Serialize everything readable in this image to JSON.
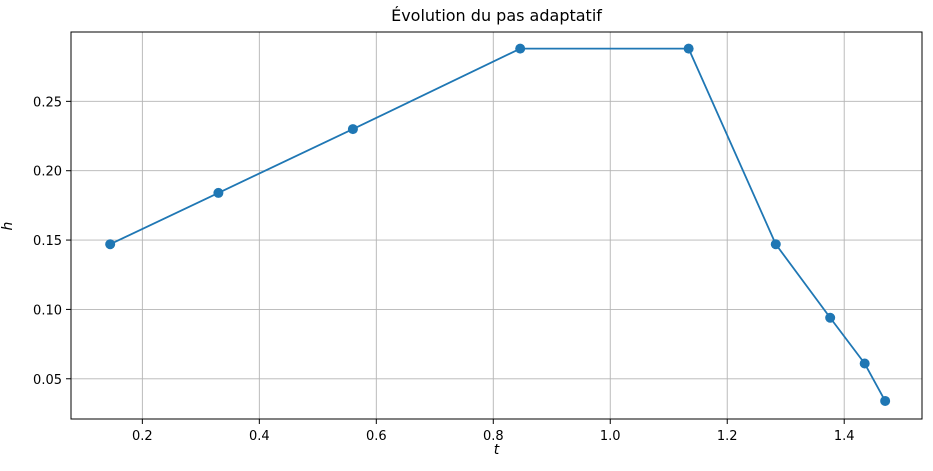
{
  "chart_data": {
    "type": "line",
    "title": "Évolution du pas adaptatif",
    "xlabel": "t",
    "ylabel": "h",
    "x": [
      0.145,
      0.33,
      0.56,
      0.846,
      1.134,
      1.283,
      1.376,
      1.435,
      1.47
    ],
    "y": [
      0.147,
      0.184,
      0.23,
      0.288,
      0.288,
      0.147,
      0.094,
      0.061,
      0.034
    ],
    "xlim": [
      0.078,
      1.533
    ],
    "ylim": [
      0.021,
      0.3
    ],
    "xticks": [
      0.2,
      0.4,
      0.6,
      0.8,
      1.0,
      1.2,
      1.4
    ],
    "xtick_labels": [
      "0.2",
      "0.4",
      "0.6",
      "0.8",
      "1.0",
      "1.2",
      "1.4"
    ],
    "yticks": [
      0.05,
      0.1,
      0.15,
      0.2,
      0.25
    ],
    "ytick_labels": [
      "0.05",
      "0.10",
      "0.15",
      "0.20",
      "0.25"
    ],
    "grid": true,
    "legend": false,
    "marker": "o",
    "line_color": "#1f77b4",
    "grid_color": "#b4b4b4",
    "spine_color": "#000000",
    "background_color": "#ffffff"
  }
}
